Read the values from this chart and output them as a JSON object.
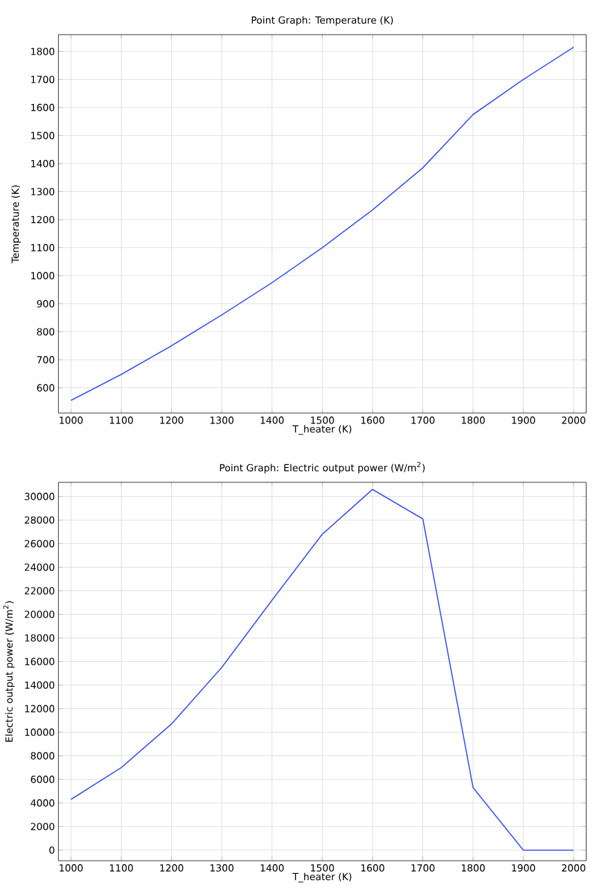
{
  "chart_data": [
    {
      "type": "line",
      "title": "Point Graph: Temperature (K)",
      "xlabel": "T_heater (K)",
      "ylabel": "Temperature (K)",
      "x": [
        1000,
        1100,
        1200,
        1300,
        1400,
        1500,
        1600,
        1700,
        1800,
        1900,
        2000
      ],
      "series": [
        {
          "color": "#3a50f0",
          "values": [
            555,
            648,
            750,
            860,
            975,
            1100,
            1235,
            1385,
            1575,
            1700,
            1815
          ]
        }
      ],
      "xlim": [
        975,
        2025
      ],
      "ylim": [
        510,
        1860
      ],
      "xticks": [
        1000,
        1100,
        1200,
        1300,
        1400,
        1500,
        1600,
        1700,
        1800,
        1900,
        2000
      ],
      "yticks": [
        600,
        700,
        800,
        900,
        1000,
        1100,
        1200,
        1300,
        1400,
        1500,
        1600,
        1700,
        1800
      ],
      "grid": true,
      "marker": "none",
      "line_style": "solid"
    },
    {
      "type": "line",
      "title": "Point Graph: Electric output power (W/m$^{2}$)",
      "xlabel": "T_heater (K)",
      "ylabel": "Electric output power (W/m$^{2}$)",
      "x": [
        1000,
        1100,
        1200,
        1300,
        1400,
        1500,
        1600,
        1700,
        1800,
        1900,
        2000
      ],
      "series": [
        {
          "color": "#3a50f0",
          "values": [
            4300,
            7000,
            10700,
            15500,
            21200,
            26800,
            30600,
            28100,
            5300,
            0,
            0
          ]
        }
      ],
      "xlim": [
        975,
        2025
      ],
      "ylim": [
        -900,
        31200
      ],
      "xticks": [
        1000,
        1100,
        1200,
        1300,
        1400,
        1500,
        1600,
        1700,
        1800,
        1900,
        2000
      ],
      "yticks": [
        0,
        2000,
        4000,
        6000,
        8000,
        10000,
        12000,
        14000,
        16000,
        18000,
        20000,
        22000,
        24000,
        26000,
        28000,
        30000
      ],
      "grid": true,
      "marker": "none",
      "line_style": "solid"
    }
  ]
}
